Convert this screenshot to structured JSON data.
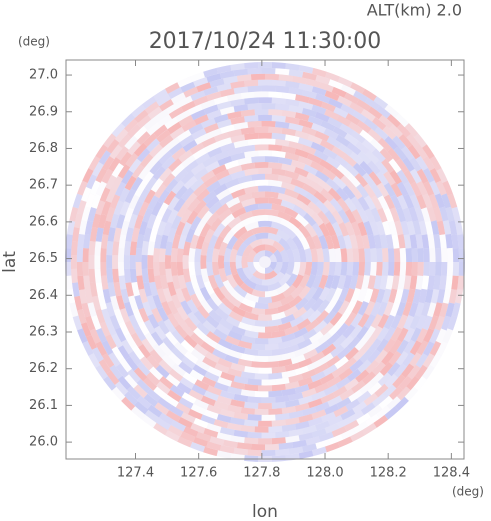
{
  "chart_data": {
    "type": "radar-ppi",
    "title": "2017/10/24 11:30:00",
    "subtitle": "ALT(km) 2.0",
    "x_label": "lon",
    "x_unit": "(deg)",
    "y_label": "lat",
    "y_unit": "(deg)",
    "xlim": [
      127.18,
      128.44
    ],
    "ylim": [
      25.954,
      27.041
    ],
    "xticks": [
      127.4,
      127.6,
      127.8,
      {
        "value": 128.0,
        "label": "128.0"
      },
      128.2,
      128.4
    ],
    "yticks": [
      {
        "value": 26.0,
        "label": "26.0"
      },
      26.1,
      26.2,
      26.3,
      26.4,
      26.5,
      26.6,
      26.7,
      26.8,
      26.9,
      {
        "value": 27.0,
        "label": "27.0"
      }
    ],
    "colors": [
      "#f6b3b3",
      "#c3c6f3"
    ]
  }
}
